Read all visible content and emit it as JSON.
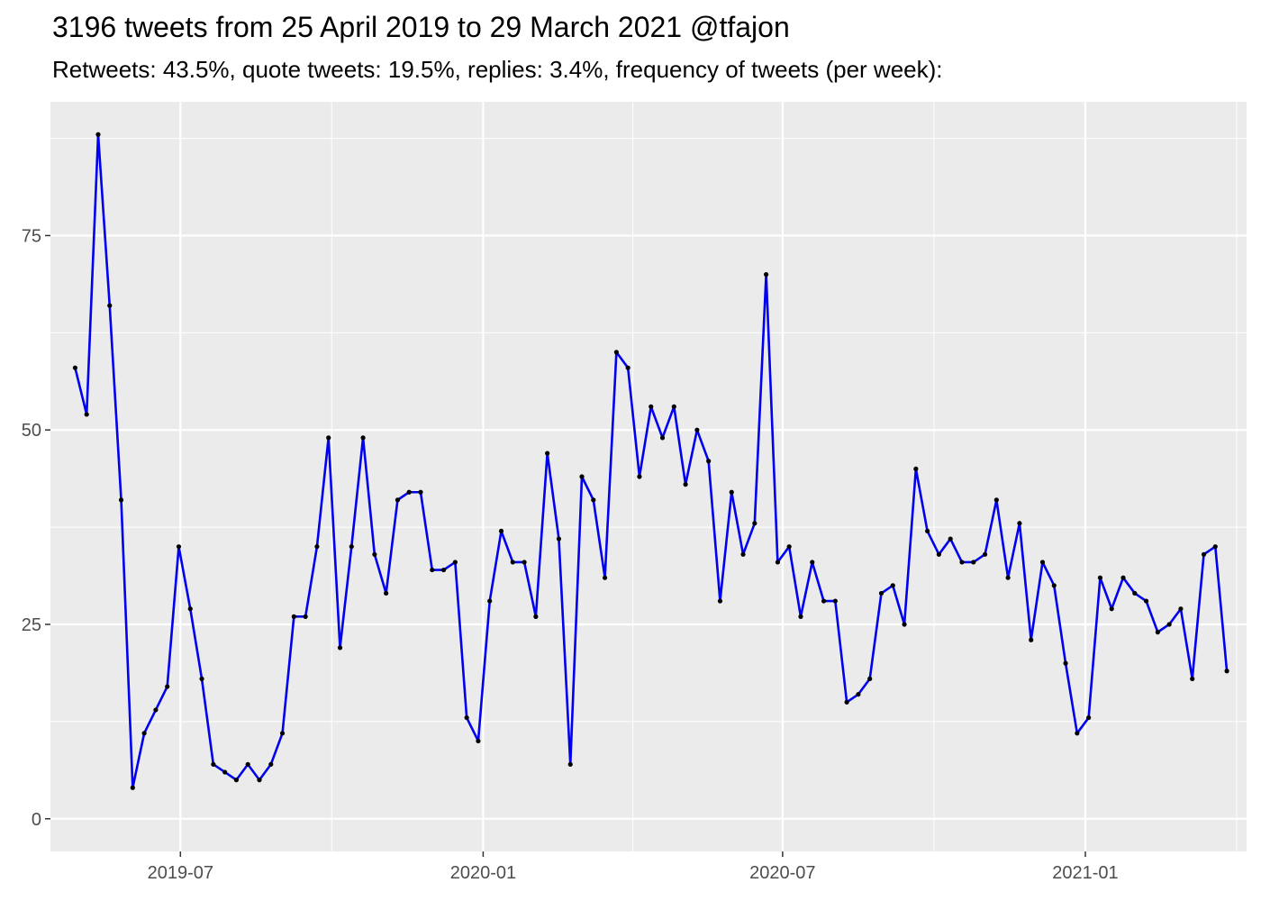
{
  "title": "3196 tweets from 25 April 2019 to 29 March 2021 @tfajon",
  "subtitle": "Retweets: 43.5%, quote tweets: 19.5%, replies: 3.4%, frequency of tweets (per week):",
  "colors": {
    "panel_background": "#ebebeb",
    "grid_major": "#ffffff",
    "line": "#0000ee",
    "point": "#000000",
    "axis_text": "#4d4d4d"
  },
  "chart_data": {
    "type": "line",
    "title": "3196 tweets from 25 April 2019 to 29 March 2021 @tfajon",
    "subtitle": "Retweets: 43.5%, quote tweets: 19.5%, replies: 3.4%, frequency of tweets (per week):",
    "xlabel": "",
    "ylabel": "",
    "grid": true,
    "x_ticks": [
      "2019-07",
      "2020-01",
      "2020-07",
      "2021-01"
    ],
    "y_ticks": [
      0,
      25,
      50,
      75
    ],
    "xlim": [
      "2019-04-13",
      "2021-04-09"
    ],
    "ylim": [
      -4.2,
      92.2
    ],
    "series": [
      {
        "x": [
          "2019-04-28",
          "2019-05-05",
          "2019-05-12",
          "2019-05-19",
          "2019-05-26",
          "2019-06-02",
          "2019-06-09",
          "2019-06-16",
          "2019-06-23",
          "2019-06-30",
          "2019-07-07",
          "2019-07-14",
          "2019-07-21",
          "2019-07-28",
          "2019-08-04",
          "2019-08-11",
          "2019-08-18",
          "2019-08-25",
          "2019-09-01",
          "2019-09-08",
          "2019-09-15",
          "2019-09-22",
          "2019-09-29",
          "2019-10-06",
          "2019-10-13",
          "2019-10-20",
          "2019-10-27",
          "2019-11-03",
          "2019-11-10",
          "2019-11-17",
          "2019-11-24",
          "2019-12-01",
          "2019-12-08",
          "2019-12-15",
          "2019-12-22",
          "2019-12-29",
          "2020-01-05",
          "2020-01-12",
          "2020-01-19",
          "2020-01-26",
          "2020-02-02",
          "2020-02-09",
          "2020-02-16",
          "2020-02-23",
          "2020-03-01",
          "2020-03-08",
          "2020-03-15",
          "2020-03-22",
          "2020-03-29",
          "2020-04-05",
          "2020-04-12",
          "2020-04-19",
          "2020-04-26",
          "2020-05-03",
          "2020-05-10",
          "2020-05-17",
          "2020-05-24",
          "2020-05-31",
          "2020-06-07",
          "2020-06-14",
          "2020-06-21",
          "2020-06-28",
          "2020-07-05",
          "2020-07-12",
          "2020-07-19",
          "2020-07-26",
          "2020-08-02",
          "2020-08-09",
          "2020-08-16",
          "2020-08-23",
          "2020-08-30",
          "2020-09-06",
          "2020-09-13",
          "2020-09-20",
          "2020-09-27",
          "2020-10-04",
          "2020-10-11",
          "2020-10-18",
          "2020-10-25",
          "2020-11-01",
          "2020-11-08",
          "2020-11-15",
          "2020-11-22",
          "2020-11-29",
          "2020-12-06",
          "2020-12-13",
          "2020-12-20",
          "2020-12-27",
          "2021-01-03",
          "2021-01-10",
          "2021-01-17",
          "2021-01-24",
          "2021-01-31",
          "2021-02-07",
          "2021-02-14",
          "2021-02-21",
          "2021-02-28",
          "2021-03-07",
          "2021-03-14",
          "2021-03-21",
          "2021-03-28"
        ],
        "values": [
          58,
          52,
          88,
          66,
          41,
          4,
          11,
          14,
          17,
          35,
          27,
          18,
          7,
          6,
          5,
          7,
          5,
          7,
          11,
          26,
          26,
          35,
          49,
          22,
          35,
          49,
          34,
          29,
          41,
          42,
          42,
          32,
          32,
          33,
          13,
          10,
          28,
          37,
          33,
          33,
          26,
          47,
          36,
          7,
          44,
          41,
          31,
          60,
          58,
          44,
          53,
          49,
          53,
          43,
          50,
          46,
          28,
          42,
          34,
          38,
          70,
          33,
          35,
          26,
          33,
          28,
          28,
          15,
          16,
          18,
          29,
          30,
          25,
          45,
          37,
          34,
          36,
          33,
          33,
          34,
          41,
          31,
          38,
          23,
          33,
          30,
          20,
          11,
          13,
          31,
          27,
          31,
          29,
          28,
          24,
          25,
          27,
          18,
          34,
          35,
          19
        ]
      }
    ]
  }
}
